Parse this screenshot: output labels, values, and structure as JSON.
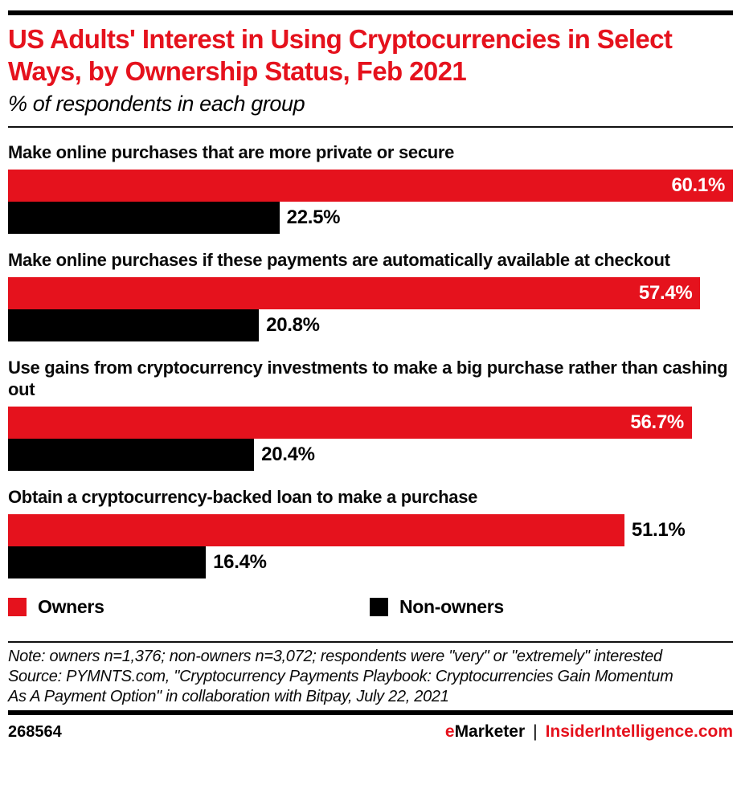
{
  "header": {
    "title": "US Adults' Interest in Using Cryptocurrencies in Select Ways, by Ownership Status, Feb 2021",
    "subtitle": "% of respondents in each group"
  },
  "chart_data": {
    "type": "bar",
    "orientation": "horizontal",
    "categories": [
      "Make online purchases that are more private or secure",
      "Make online purchases if these payments are automatically available at checkout",
      "Use gains from cryptocurrency investments to make a big purchase rather than cashing out",
      "Obtain a cryptocurrency-backed loan to make a purchase"
    ],
    "series": [
      {
        "name": "Owners",
        "color": "#e5121d",
        "values": [
          60.1,
          57.4,
          56.7,
          51.1
        ],
        "label_inside": [
          true,
          true,
          true,
          false
        ]
      },
      {
        "name": "Non-owners",
        "color": "#000000",
        "values": [
          22.5,
          20.8,
          20.4,
          16.4
        ],
        "label_inside": [
          false,
          false,
          false,
          false
        ]
      }
    ],
    "value_suffix": "%",
    "axis_max": 60.1,
    "grid": false,
    "legend_position": "bottom",
    "value_labels_shown": true
  },
  "legend": {
    "items": [
      {
        "label": "Owners",
        "color": "#e5121d"
      },
      {
        "label": "Non-owners",
        "color": "#000000"
      }
    ]
  },
  "footnote": {
    "note": "Note: owners n=1,376; non-owners n=3,072; respondents were \"very\" or \"extremely\" interested",
    "source": "Source: PYMNTS.com, \"Cryptocurrency Payments Playbook: Cryptocurrencies Gain Momentum As A Payment Option\" in collaboration with Bitpay, July 22, 2021"
  },
  "footer": {
    "chart_id": "268564",
    "brand_e": "e",
    "brand_rest": "Marketer",
    "separator": "|",
    "site": "InsiderIntelligence.com"
  },
  "colors": {
    "accent_red": "#e5121d",
    "black": "#000000"
  }
}
